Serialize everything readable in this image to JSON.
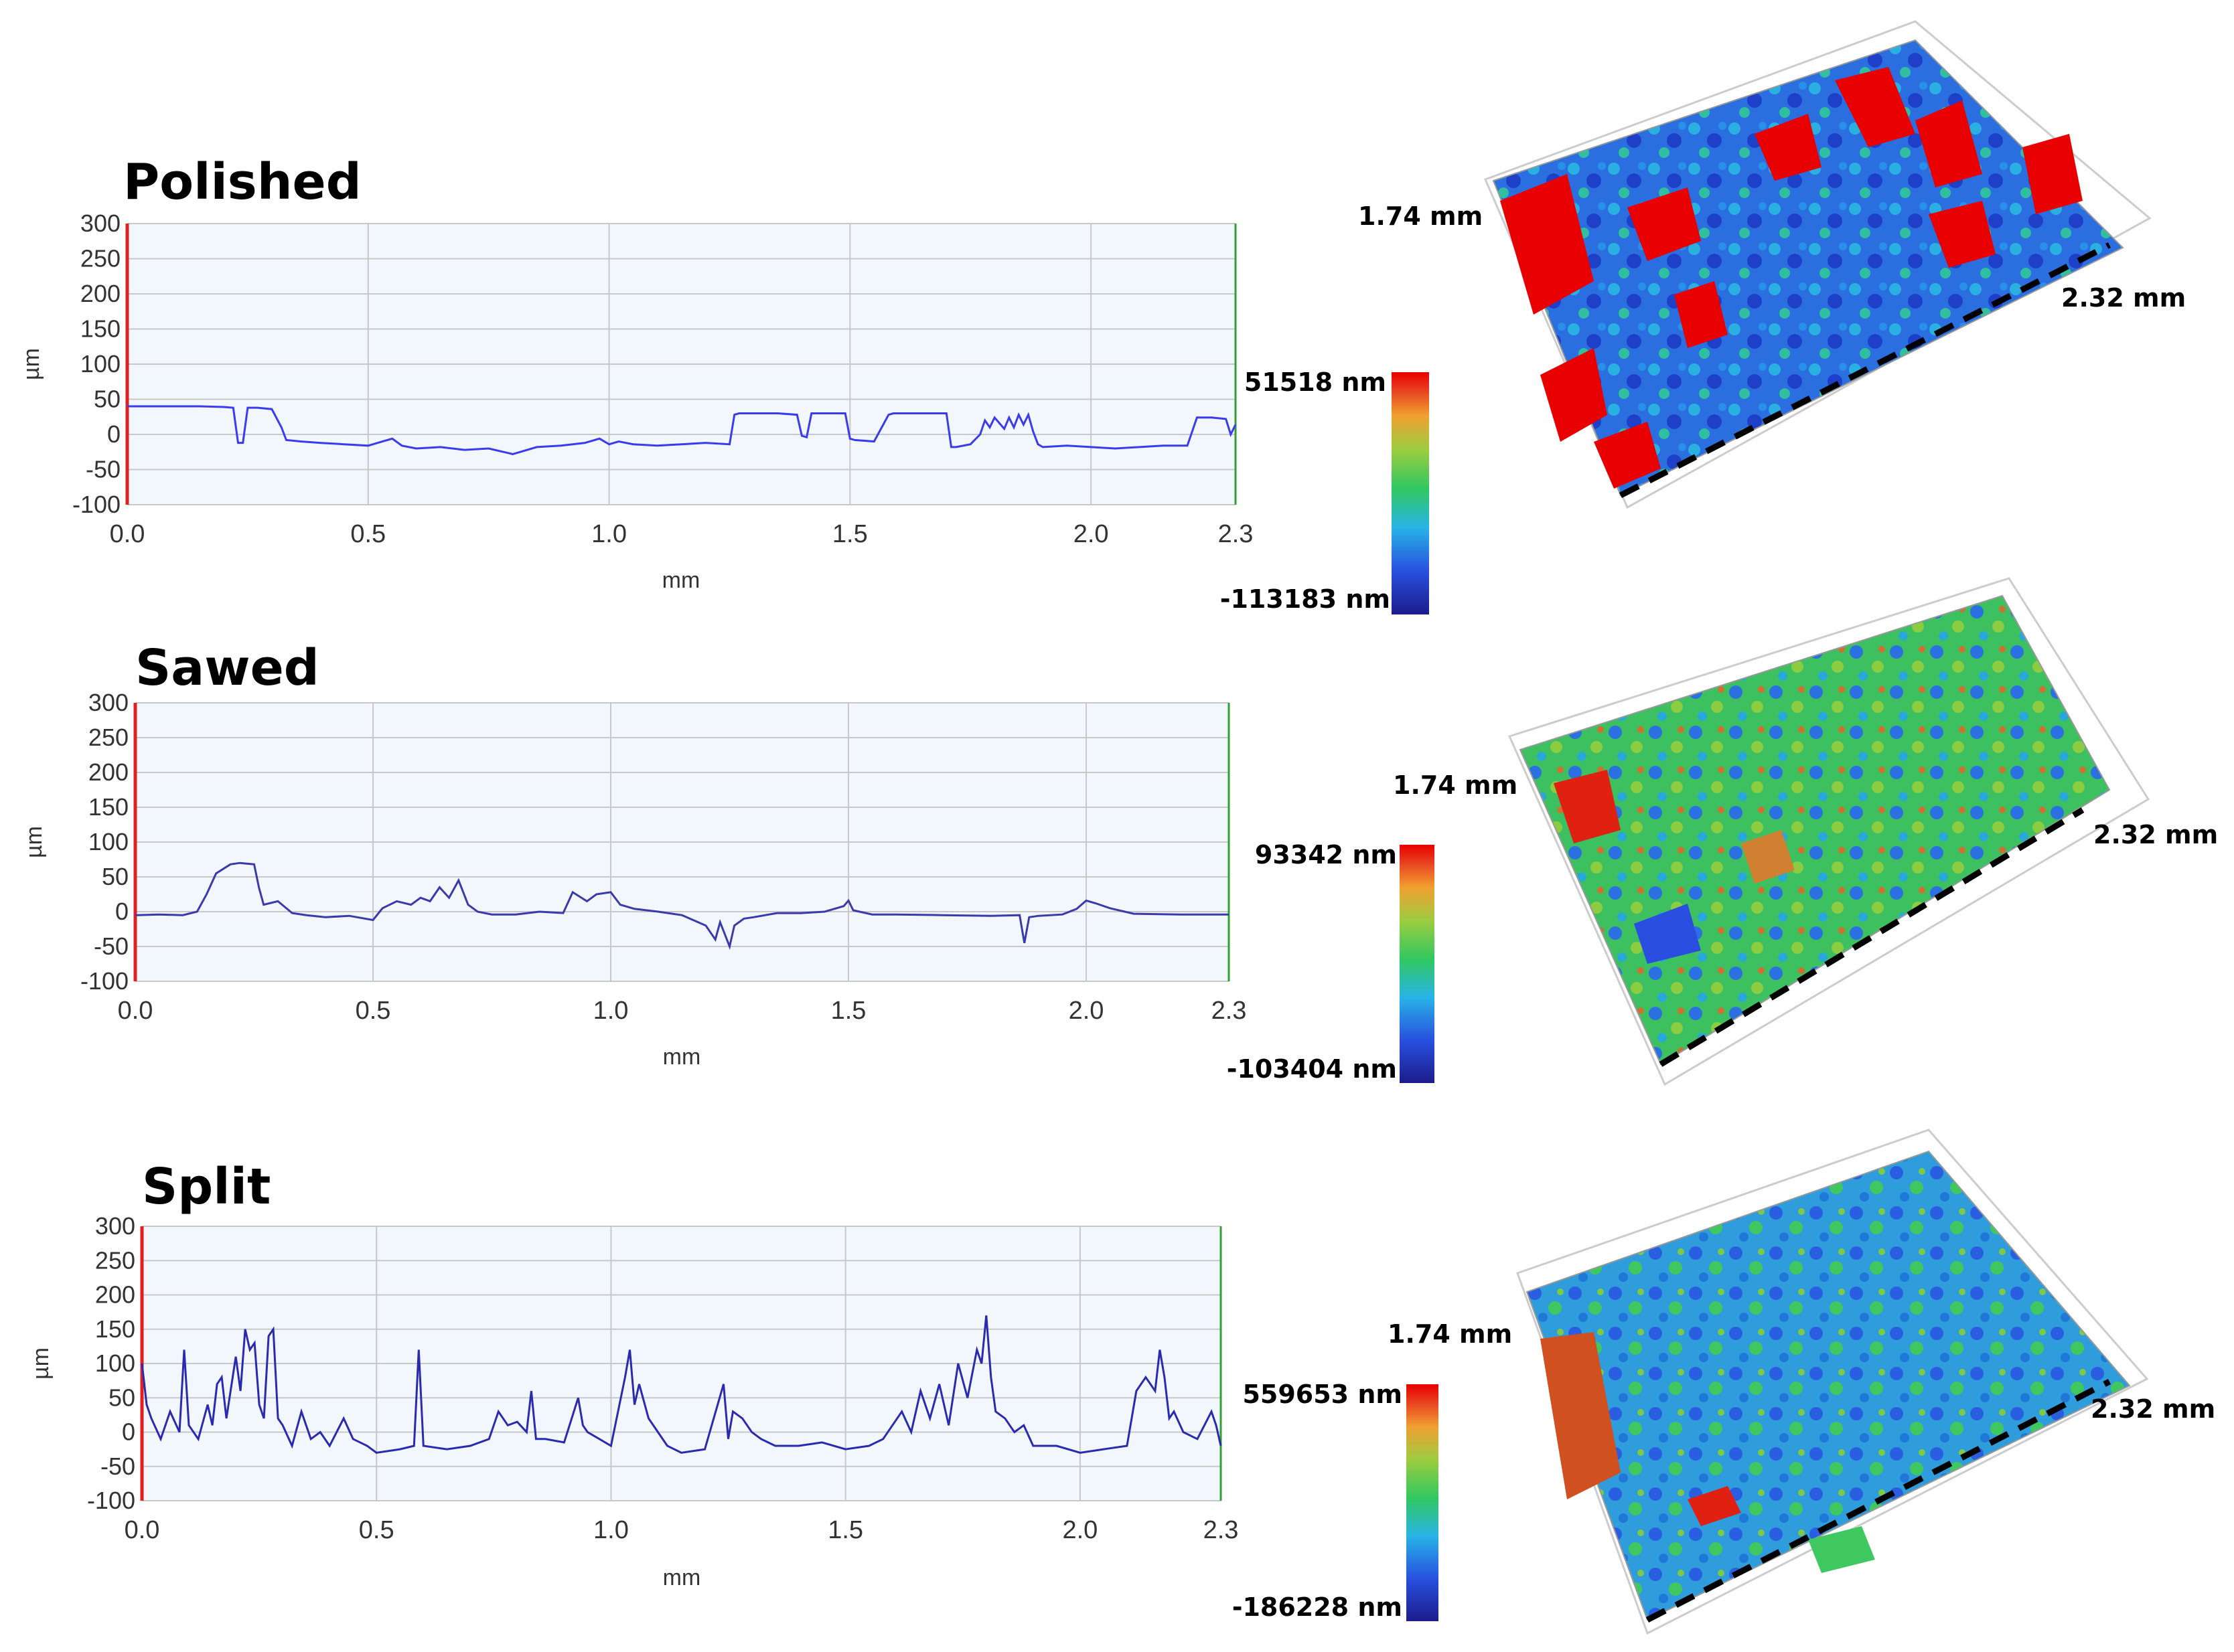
{
  "chart_data": [
    {
      "type": "line",
      "title": "Polished",
      "xlabel": "mm",
      "ylabel": "µm",
      "xlim": [
        0.0,
        2.3
      ],
      "ylim": [
        -100,
        300
      ],
      "xticks": [
        "0.0",
        "0.5",
        "1.0",
        "1.5",
        "2.0",
        "2.3"
      ],
      "yticks": [
        "300",
        "250",
        "200",
        "150",
        "100",
        "50",
        "0",
        "-50",
        "-100"
      ],
      "grid": true,
      "series": [
        {
          "name": "profile",
          "color": "#3a3aee",
          "x": [
            0.0,
            0.05,
            0.1,
            0.15,
            0.2,
            0.22,
            0.23,
            0.24,
            0.25,
            0.27,
            0.3,
            0.32,
            0.33,
            0.36,
            0.4,
            0.45,
            0.5,
            0.52,
            0.55,
            0.57,
            0.6,
            0.65,
            0.7,
            0.75,
            0.8,
            0.85,
            0.9,
            0.95,
            0.98,
            1.0,
            1.02,
            1.05,
            1.1,
            1.15,
            1.2,
            1.25,
            1.26,
            1.27,
            1.3,
            1.35,
            1.39,
            1.4,
            1.41,
            1.42,
            1.45,
            1.49,
            1.5,
            1.51,
            1.55,
            1.58,
            1.59,
            1.6,
            1.65,
            1.7,
            1.71,
            1.72,
            1.75,
            1.77,
            1.78,
            1.79,
            1.8,
            1.82,
            1.83,
            1.84,
            1.85,
            1.86,
            1.87,
            1.88,
            1.89,
            1.9,
            1.95,
            2.0,
            2.05,
            2.1,
            2.15,
            2.2,
            2.22,
            2.23,
            2.25,
            2.28,
            2.29,
            2.3
          ],
          "values": [
            40,
            40,
            40,
            40,
            39,
            38,
            -12,
            -12,
            38,
            38,
            36,
            10,
            -8,
            -10,
            -12,
            -14,
            -16,
            -12,
            -6,
            -16,
            -20,
            -18,
            -22,
            -20,
            -28,
            -18,
            -16,
            -12,
            -6,
            -14,
            -10,
            -14,
            -16,
            -14,
            -12,
            -14,
            28,
            30,
            30,
            30,
            28,
            -2,
            -4,
            30,
            30,
            30,
            -6,
            -8,
            -10,
            28,
            30,
            30,
            30,
            30,
            -18,
            -18,
            -14,
            0,
            20,
            10,
            24,
            8,
            24,
            10,
            28,
            14,
            28,
            4,
            -14,
            -18,
            -16,
            -18,
            -20,
            -18,
            -16,
            -16,
            24,
            24,
            24,
            22,
            0,
            14
          ]
        }
      ]
    },
    {
      "type": "line",
      "title": "Sawed",
      "xlabel": "mm",
      "ylabel": "µm",
      "xlim": [
        0.0,
        2.3
      ],
      "ylim": [
        -100,
        300
      ],
      "xticks": [
        "0.0",
        "0.5",
        "1.0",
        "1.5",
        "2.0",
        "2.3"
      ],
      "yticks": [
        "300",
        "250",
        "200",
        "150",
        "100",
        "50",
        "0",
        "-50",
        "-100"
      ],
      "grid": true,
      "series": [
        {
          "name": "profile",
          "color": "#3a3aaa",
          "x": [
            0.0,
            0.05,
            0.1,
            0.13,
            0.15,
            0.17,
            0.2,
            0.22,
            0.25,
            0.26,
            0.27,
            0.3,
            0.33,
            0.36,
            0.4,
            0.45,
            0.5,
            0.52,
            0.55,
            0.58,
            0.6,
            0.62,
            0.64,
            0.66,
            0.68,
            0.7,
            0.72,
            0.75,
            0.8,
            0.85,
            0.9,
            0.92,
            0.95,
            0.97,
            1.0,
            1.02,
            1.05,
            1.1,
            1.15,
            1.2,
            1.22,
            1.23,
            1.25,
            1.26,
            1.28,
            1.3,
            1.35,
            1.4,
            1.45,
            1.49,
            1.5,
            1.51,
            1.55,
            1.6,
            1.7,
            1.8,
            1.86,
            1.87,
            1.88,
            1.9,
            1.95,
            1.98,
            2.0,
            2.02,
            2.05,
            2.1,
            2.2,
            2.3
          ],
          "values": [
            -5,
            -4,
            -5,
            0,
            25,
            55,
            68,
            70,
            68,
            35,
            10,
            15,
            -2,
            -5,
            -8,
            -6,
            -12,
            5,
            15,
            10,
            20,
            15,
            35,
            20,
            45,
            10,
            0,
            -4,
            -4,
            0,
            -2,
            28,
            15,
            25,
            28,
            10,
            4,
            0,
            -5,
            -20,
            -40,
            -15,
            -50,
            -20,
            -10,
            -8,
            -2,
            -2,
            0,
            8,
            16,
            2,
            -4,
            -4,
            -5,
            -6,
            -5,
            -45,
            -8,
            -6,
            -4,
            4,
            16,
            12,
            5,
            -3,
            -4,
            -4
          ]
        }
      ]
    },
    {
      "type": "line",
      "title": "Split",
      "xlabel": "mm",
      "ylabel": "µm",
      "xlim": [
        0.0,
        2.3
      ],
      "ylim": [
        -100,
        300
      ],
      "xticks": [
        "0.0",
        "0.5",
        "1.0",
        "1.5",
        "2.0",
        "2.3"
      ],
      "yticks": [
        "300",
        "250",
        "200",
        "150",
        "100",
        "50",
        "0",
        "-50",
        "-100"
      ],
      "grid": true,
      "series": [
        {
          "name": "profile",
          "color": "#2a2ab0",
          "x": [
            0.0,
            0.01,
            0.02,
            0.04,
            0.06,
            0.08,
            0.09,
            0.1,
            0.12,
            0.14,
            0.15,
            0.16,
            0.17,
            0.18,
            0.2,
            0.21,
            0.22,
            0.23,
            0.24,
            0.25,
            0.26,
            0.27,
            0.28,
            0.29,
            0.3,
            0.32,
            0.34,
            0.36,
            0.38,
            0.4,
            0.43,
            0.44,
            0.45,
            0.48,
            0.5,
            0.55,
            0.58,
            0.59,
            0.6,
            0.65,
            0.7,
            0.74,
            0.76,
            0.78,
            0.8,
            0.82,
            0.83,
            0.84,
            0.86,
            0.9,
            0.93,
            0.94,
            0.95,
            1.0,
            1.03,
            1.04,
            1.05,
            1.06,
            1.08,
            1.1,
            1.12,
            1.15,
            1.2,
            1.24,
            1.25,
            1.26,
            1.28,
            1.3,
            1.32,
            1.35,
            1.4,
            1.45,
            1.5,
            1.55,
            1.58,
            1.6,
            1.62,
            1.64,
            1.66,
            1.68,
            1.7,
            1.72,
            1.74,
            1.76,
            1.78,
            1.79,
            1.8,
            1.81,
            1.82,
            1.84,
            1.86,
            1.88,
            1.9,
            1.95,
            2.0,
            2.05,
            2.1,
            2.12,
            2.14,
            2.16,
            2.17,
            2.18,
            2.19,
            2.2,
            2.22,
            2.25,
            2.28,
            2.29,
            2.3
          ],
          "values": [
            100,
            40,
            20,
            -10,
            30,
            0,
            120,
            10,
            -10,
            40,
            10,
            70,
            80,
            20,
            110,
            60,
            150,
            120,
            130,
            40,
            20,
            140,
            150,
            20,
            10,
            -20,
            30,
            -10,
            0,
            -20,
            20,
            5,
            -10,
            -20,
            -30,
            -25,
            -20,
            120,
            -20,
            -25,
            -20,
            -10,
            30,
            10,
            15,
            0,
            60,
            -10,
            -10,
            -15,
            50,
            10,
            0,
            -20,
            80,
            120,
            40,
            70,
            20,
            0,
            -20,
            -30,
            -25,
            70,
            -10,
            30,
            20,
            0,
            -10,
            -20,
            -20,
            -15,
            -25,
            -20,
            -10,
            10,
            30,
            0,
            60,
            20,
            70,
            10,
            100,
            50,
            120,
            100,
            170,
            80,
            30,
            20,
            0,
            10,
            -20,
            -20,
            -30,
            -25,
            -20,
            60,
            80,
            60,
            120,
            80,
            20,
            30,
            0,
            -10,
            30,
            10,
            -20
          ]
        }
      ]
    }
  ],
  "colorbars": [
    {
      "max_label": "51518 nm",
      "min_label": "-113183 nm"
    },
    {
      "max_label": "93342 nm",
      "min_label": "-103404 nm"
    },
    {
      "max_label": "559653 nm",
      "min_label": "-186228 nm"
    }
  ],
  "surfaces": [
    {
      "width_label": "1.74 mm",
      "length_label": "2.32 mm"
    },
    {
      "width_label": "1.74 mm",
      "length_label": "2.32 mm"
    },
    {
      "width_label": "1.74 mm",
      "length_label": "2.32 mm"
    }
  ],
  "colors": {
    "plot_bg": "#f1f7fc",
    "grid": "#c8c8c8",
    "left_axis": "#e02020",
    "right_axis": "#30a030",
    "colormap": [
      "#1c1c8c",
      "#2850e0",
      "#28b4e6",
      "#30c860",
      "#9ccc40",
      "#f0a030",
      "#e83c1e",
      "#e80000"
    ]
  }
}
